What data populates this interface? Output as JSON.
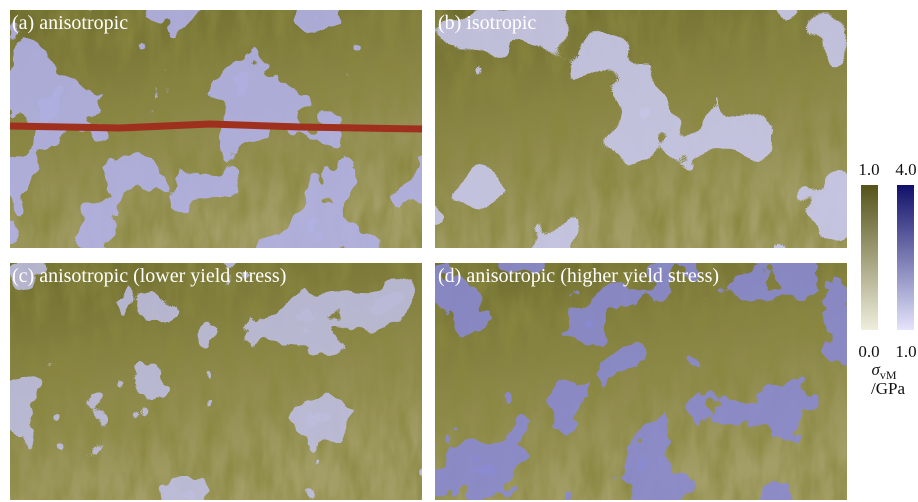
{
  "panels": [
    {
      "label": "(a) anisotropic"
    },
    {
      "label": "(b) isotropic"
    },
    {
      "label": "(c) anisotropic (lower yield stress)"
    },
    {
      "label": "(d) anisotropic (higher yield stress)"
    }
  ],
  "colorbars": [
    {
      "top": "1.0",
      "bottom": "0.0"
    },
    {
      "top": "4.0",
      "bottom": "1.0"
    }
  ],
  "unit": {
    "symbol": "σ",
    "subscript": "vM",
    "per": "/GPa"
  }
}
